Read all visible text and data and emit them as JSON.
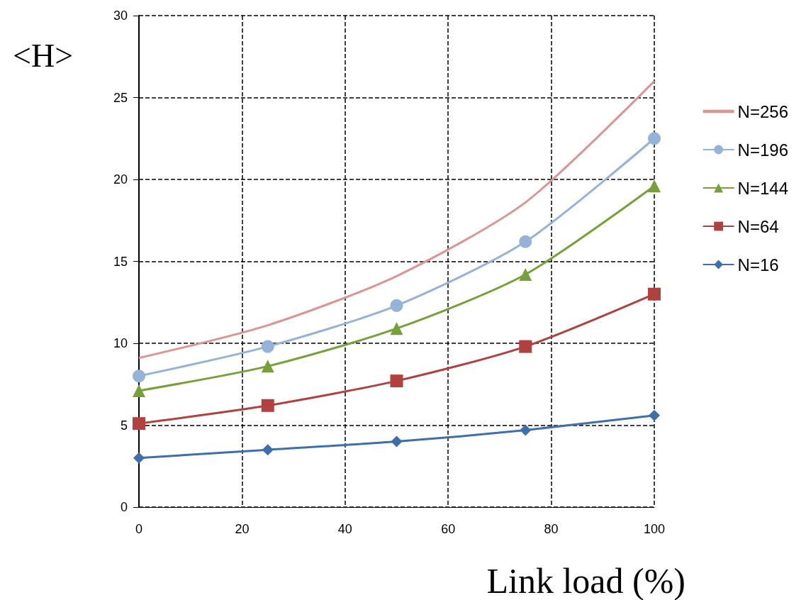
{
  "chart_data": {
    "type": "line",
    "xlabel": "Link load (%)",
    "ylabel": "<H>",
    "x": [
      0,
      25,
      50,
      75,
      100
    ],
    "series": [
      {
        "name": "N=256",
        "color": "#d99694",
        "marker": "none",
        "values": [
          9.1,
          11.1,
          14.1,
          18.6,
          26.0
        ]
      },
      {
        "name": "N=196",
        "color": "#95b3d7",
        "marker": "circle",
        "values": [
          8.0,
          9.8,
          12.3,
          16.2,
          22.5
        ]
      },
      {
        "name": "N=144",
        "color": "#77a03a",
        "marker": "triangle",
        "values": [
          7.1,
          8.6,
          10.9,
          14.2,
          19.6
        ]
      },
      {
        "name": "N=64",
        "color": "#b0413e",
        "marker": "square",
        "values": [
          5.1,
          6.2,
          7.7,
          9.8,
          13.0
        ]
      },
      {
        "name": "N=16",
        "color": "#3f6faa",
        "marker": "diamond",
        "values": [
          3.0,
          3.5,
          4.0,
          4.7,
          5.6
        ]
      }
    ],
    "xlim": [
      0,
      100
    ],
    "xticks": [
      0,
      20,
      40,
      60,
      80,
      100
    ],
    "ylim": [
      0,
      30
    ],
    "yticks": [
      0,
      5,
      10,
      15,
      20,
      25,
      30
    ],
    "grid": true,
    "legend": "right",
    "line_style": "solid"
  }
}
